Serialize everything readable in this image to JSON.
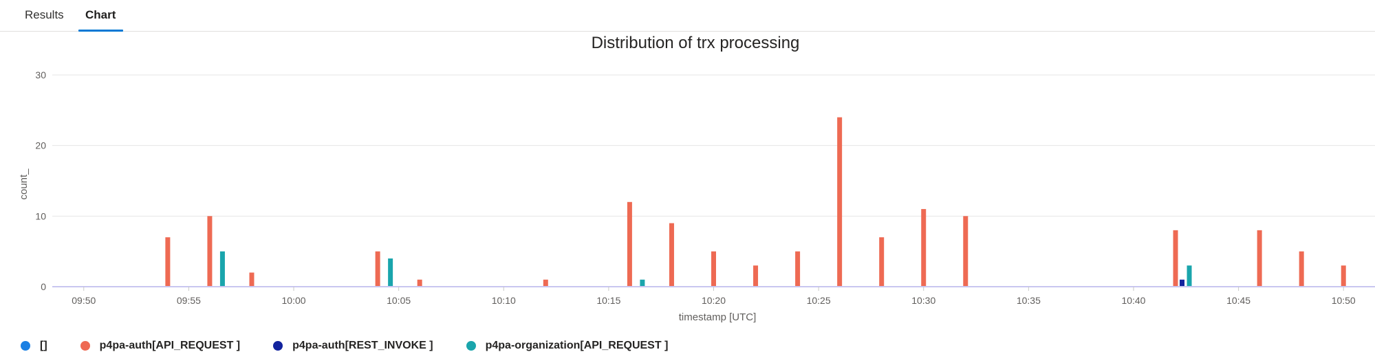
{
  "tabs": [
    {
      "label": "Results",
      "active": false
    },
    {
      "label": "Chart",
      "active": true
    }
  ],
  "chart_data": {
    "type": "bar",
    "title": "Distribution of trx processing",
    "xlabel": "timestamp [UTC]",
    "ylabel": "count_",
    "ylim": [
      0,
      30
    ],
    "yticks": [
      0,
      10,
      20,
      30
    ],
    "xlim": [
      "09:48:30",
      "10:51:30"
    ],
    "xticks": [
      "09:50",
      "09:55",
      "10:00",
      "10:05",
      "10:10",
      "10:15",
      "10:20",
      "10:25",
      "10:30",
      "10:35",
      "10:40",
      "10:45",
      "10:50"
    ],
    "grid": true,
    "legend_position": "bottom",
    "series": [
      {
        "name": "[]",
        "color": "#1a80e3",
        "points": []
      },
      {
        "name": "p4pa-auth[API_REQUEST ]",
        "color": "#ee6a53",
        "points": [
          {
            "x": "09:54",
            "y": 7
          },
          {
            "x": "09:56",
            "y": 10
          },
          {
            "x": "09:58",
            "y": 2
          },
          {
            "x": "10:04",
            "y": 5
          },
          {
            "x": "10:06",
            "y": 1
          },
          {
            "x": "10:12",
            "y": 1
          },
          {
            "x": "10:16",
            "y": 12
          },
          {
            "x": "10:18",
            "y": 9
          },
          {
            "x": "10:20",
            "y": 5
          },
          {
            "x": "10:22",
            "y": 3
          },
          {
            "x": "10:24",
            "y": 5
          },
          {
            "x": "10:26",
            "y": 24
          },
          {
            "x": "10:28",
            "y": 7
          },
          {
            "x": "10:30",
            "y": 11
          },
          {
            "x": "10:32",
            "y": 10
          },
          {
            "x": "10:42",
            "y": 8
          },
          {
            "x": "10:46",
            "y": 8
          },
          {
            "x": "10:48",
            "y": 5
          },
          {
            "x": "10:50",
            "y": 3
          }
        ]
      },
      {
        "name": "p4pa-auth[REST_INVOKE ]",
        "color": "#12239e",
        "points": [
          {
            "x": "10:42",
            "y": 1
          }
        ]
      },
      {
        "name": "p4pa-organization[API_REQUEST ]",
        "color": "#1aa5ac",
        "points": [
          {
            "x": "09:56",
            "y": 5
          },
          {
            "x": "10:04",
            "y": 4
          },
          {
            "x": "10:16",
            "y": 1
          },
          {
            "x": "10:42",
            "y": 3
          }
        ]
      }
    ]
  }
}
